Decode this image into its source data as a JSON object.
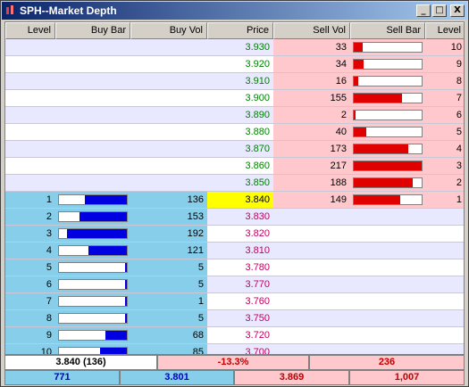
{
  "window": {
    "title": "SPH--Market Depth",
    "controls": [
      "_",
      "□",
      "X"
    ]
  },
  "columns": [
    "Level",
    "Buy Bar",
    "Buy Vol",
    "Price",
    "Sell Vol",
    "Sell Bar",
    "Level"
  ],
  "colors": {
    "ask_bg": "#ffc8cc",
    "bid_bg": "#87ceeb",
    "row_alt": "#e8e8ff",
    "ask_price": "#008000",
    "bid_price": "#c00060",
    "best_price_bg": "#ffff00",
    "buy_bar": "#0000e0",
    "sell_bar": "#e00000"
  },
  "asks": [
    {
      "price": "3.930",
      "vol": "33",
      "level": "10",
      "bar": 0.13
    },
    {
      "price": "3.920",
      "vol": "34",
      "level": "9",
      "bar": 0.14
    },
    {
      "price": "3.910",
      "vol": "16",
      "level": "8",
      "bar": 0.07
    },
    {
      "price": "3.900",
      "vol": "155",
      "level": "7",
      "bar": 0.71
    },
    {
      "price": "3.890",
      "vol": "2",
      "level": "6",
      "bar": 0.01
    },
    {
      "price": "3.880",
      "vol": "40",
      "level": "5",
      "bar": 0.18
    },
    {
      "price": "3.870",
      "vol": "173",
      "level": "4",
      "bar": 0.8
    },
    {
      "price": "3.860",
      "vol": "217",
      "level": "3",
      "bar": 1.0
    },
    {
      "price": "3.850",
      "vol": "188",
      "level": "2",
      "bar": 0.87
    }
  ],
  "best": {
    "bid_level": "1",
    "bid_vol": "136",
    "bid_bar": 0.62,
    "price": "3.840",
    "ask_vol": "149",
    "ask_level": "1",
    "ask_bar": 0.69
  },
  "bids": [
    {
      "level": "2",
      "vol": "153",
      "price": "3.830",
      "bar": 0.7
    },
    {
      "level": "3",
      "vol": "192",
      "price": "3.820",
      "bar": 0.88
    },
    {
      "level": "4",
      "vol": "121",
      "price": "3.810",
      "bar": 0.56
    },
    {
      "level": "5",
      "vol": "5",
      "price": "3.780",
      "bar": 0.03
    },
    {
      "level": "6",
      "vol": "5",
      "price": "3.770",
      "bar": 0.03
    },
    {
      "level": "7",
      "vol": "1",
      "price": "3.760",
      "bar": 0.01
    },
    {
      "level": "8",
      "vol": "5",
      "price": "3.750",
      "bar": 0.03
    },
    {
      "level": "9",
      "vol": "68",
      "price": "3.720",
      "bar": 0.31
    },
    {
      "level": "10",
      "vol": "85",
      "price": "3.700",
      "bar": 0.39
    }
  ],
  "summary": {
    "last": "3.840 (136)",
    "change": "-13.3%",
    "total_vol": "236",
    "bid_total": "771",
    "bid_avg": "3.801",
    "ask_avg": "3.869",
    "ask_total": "1,007"
  }
}
